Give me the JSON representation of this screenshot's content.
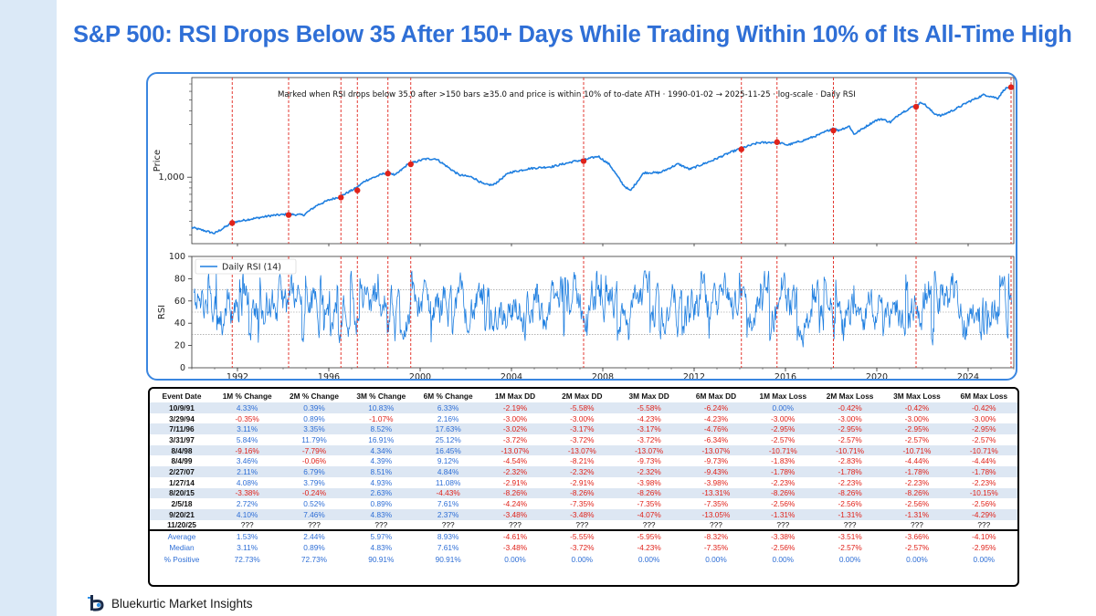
{
  "title": "S&P 500: RSI Drops Below 35 After 150+ Days While Trading Within 10% of Its All-Time High",
  "brand": "Bluekurtic Market Insights",
  "colors": {
    "accent": "#2f6fd6",
    "line": "#1f7fe0",
    "marker": "#e0231b",
    "frame": "#3a86e0"
  },
  "chart_data": [
    {
      "type": "line",
      "annotation": "Marked when RSI drops below 35.0 after >150 bars ≥35.0 and price is within 10% of to-date ATH · 1990-01-02 → 2025-11-25 · log-scale · Daily RSI",
      "ylabel": "Price",
      "yscale": "log",
      "ytick_labels": [
        "1,000"
      ],
      "x": [
        1990.0,
        1990.5,
        1991.0,
        1991.8,
        1992.5,
        1993.5,
        1994.2,
        1994.9,
        1995.5,
        1996.0,
        1996.5,
        1997.2,
        1997.6,
        1998.0,
        1998.6,
        1998.9,
        1999.5,
        1999.7,
        2000.2,
        2000.7,
        2001.3,
        2001.7,
        2002.3,
        2002.8,
        2003.2,
        2003.9,
        2004.8,
        2005.8,
        2006.8,
        2007.2,
        2007.8,
        2008.3,
        2008.9,
        2009.2,
        2009.8,
        2010.5,
        2011.3,
        2011.8,
        2012.8,
        2013.5,
        2014.1,
        2014.8,
        2015.6,
        2016.1,
        2016.8,
        2017.5,
        2018.1,
        2018.3,
        2018.8,
        2019.0,
        2019.9,
        2020.2,
        2020.6,
        2021.0,
        2021.7,
        2022.0,
        2022.5,
        2022.8,
        2023.4,
        2024.0,
        2024.7,
        2025.3,
        2025.6,
        2025.9
      ],
      "y": [
        350,
        330,
        310,
        390,
        415,
        450,
        462,
        455,
        560,
        620,
        670,
        800,
        930,
        1000,
        1120,
        1040,
        1330,
        1360,
        1460,
        1470,
        1200,
        1050,
        1000,
        860,
        850,
        1100,
        1200,
        1250,
        1400,
        1440,
        1550,
        1300,
        850,
        750,
        1100,
        1100,
        1320,
        1180,
        1420,
        1650,
        1840,
        2050,
        2080,
        1960,
        2160,
        2440,
        2800,
        2650,
        2900,
        2450,
        3230,
        3380,
        3150,
        3750,
        4500,
        4760,
        3800,
        3600,
        4100,
        4800,
        5600,
        5200,
        6300,
        6700
      ],
      "markers": [
        {
          "date": "10/9/91",
          "x": 1991.77,
          "y": 385
        },
        {
          "date": "3/29/94",
          "x": 1994.24,
          "y": 455
        },
        {
          "date": "7/11/96",
          "x": 1996.53,
          "y": 655
        },
        {
          "date": "3/31/97",
          "x": 1997.25,
          "y": 760
        },
        {
          "date": "8/4/98",
          "x": 1998.59,
          "y": 1080
        },
        {
          "date": "8/4/99",
          "x": 1999.59,
          "y": 1310
        },
        {
          "date": "2/27/07",
          "x": 2007.16,
          "y": 1400
        },
        {
          "date": "1/27/14",
          "x": 2014.07,
          "y": 1790
        },
        {
          "date": "8/20/15",
          "x": 2015.63,
          "y": 2080
        },
        {
          "date": "2/5/18",
          "x": 2018.1,
          "y": 2650
        },
        {
          "date": "9/20/21",
          "x": 2021.72,
          "y": 4350
        },
        {
          "date": "11/20/25",
          "x": 2025.88,
          "y": 6540
        }
      ],
      "xlim": [
        1990,
        2026
      ]
    },
    {
      "type": "line",
      "ylabel": "RSI",
      "ylim": [
        0,
        100
      ],
      "yticks": [
        0,
        20,
        40,
        60,
        80,
        100
      ],
      "hlines": [
        30,
        50,
        70
      ],
      "xticks": [
        1992,
        1996,
        2000,
        2004,
        2008,
        2012,
        2016,
        2020,
        2024
      ],
      "legend": "Daily RSI (14)",
      "legend_position": "top-left",
      "series": [
        {
          "name": "Daily RSI (14)",
          "value_range": [
            15,
            87
          ],
          "mean": 55
        }
      ]
    }
  ],
  "table": {
    "headers": [
      "Event Date",
      "1M % Change",
      "2M % Change",
      "3M % Change",
      "6M % Change",
      "1M Max DD",
      "2M Max DD",
      "3M Max DD",
      "6M Max DD",
      "1M Max Loss",
      "2M Max Loss",
      "3M Max Loss",
      "6M Max Loss"
    ],
    "rows": [
      [
        "10/9/91",
        "4.33%",
        "0.39%",
        "10.83%",
        "6.33%",
        "-2.19%",
        "-5.58%",
        "-5.58%",
        "-6.24%",
        "0.00%",
        "-0.42%",
        "-0.42%",
        "-0.42%"
      ],
      [
        "3/29/94",
        "-0.35%",
        "0.89%",
        "-1.07%",
        "2.16%",
        "-3.00%",
        "-3.00%",
        "-4.23%",
        "-4.23%",
        "-3.00%",
        "-3.00%",
        "-3.00%",
        "-3.00%"
      ],
      [
        "7/11/96",
        "3.11%",
        "3.35%",
        "8.52%",
        "17.63%",
        "-3.02%",
        "-3.17%",
        "-3.17%",
        "-4.76%",
        "-2.95%",
        "-2.95%",
        "-2.95%",
        "-2.95%"
      ],
      [
        "3/31/97",
        "5.84%",
        "11.79%",
        "16.91%",
        "25.12%",
        "-3.72%",
        "-3.72%",
        "-3.72%",
        "-6.34%",
        "-2.57%",
        "-2.57%",
        "-2.57%",
        "-2.57%"
      ],
      [
        "8/4/98",
        "-9.16%",
        "-7.79%",
        "4.34%",
        "16.45%",
        "-13.07%",
        "-13.07%",
        "-13.07%",
        "-13.07%",
        "-10.71%",
        "-10.71%",
        "-10.71%",
        "-10.71%"
      ],
      [
        "8/4/99",
        "3.46%",
        "-0.06%",
        "4.39%",
        "9.12%",
        "-4.54%",
        "-8.21%",
        "-9.73%",
        "-9.73%",
        "-1.83%",
        "-2.83%",
        "-4.44%",
        "-4.44%"
      ],
      [
        "2/27/07",
        "2.11%",
        "6.79%",
        "8.51%",
        "4.84%",
        "-2.32%",
        "-2.32%",
        "-2.32%",
        "-9.43%",
        "-1.78%",
        "-1.78%",
        "-1.78%",
        "-1.78%"
      ],
      [
        "1/27/14",
        "4.08%",
        "3.79%",
        "4.93%",
        "11.08%",
        "-2.91%",
        "-2.91%",
        "-3.98%",
        "-3.98%",
        "-2.23%",
        "-2.23%",
        "-2.23%",
        "-2.23%"
      ],
      [
        "8/20/15",
        "-3.38%",
        "-0.24%",
        "2.63%",
        "-4.43%",
        "-8.26%",
        "-8.26%",
        "-8.26%",
        "-13.31%",
        "-8.26%",
        "-8.26%",
        "-8.26%",
        "-10.15%"
      ],
      [
        "2/5/18",
        "2.72%",
        "0.52%",
        "0.89%",
        "7.61%",
        "-4.24%",
        "-7.35%",
        "-7.35%",
        "-7.35%",
        "-2.56%",
        "-2.56%",
        "-2.56%",
        "-2.56%"
      ],
      [
        "9/20/21",
        "4.10%",
        "7.46%",
        "4.83%",
        "2.37%",
        "-3.48%",
        "-3.48%",
        "-4.07%",
        "-13.05%",
        "-1.31%",
        "-1.31%",
        "-1.31%",
        "-4.29%"
      ],
      [
        "11/20/25",
        "???",
        "???",
        "???",
        "???",
        "???",
        "???",
        "???",
        "???",
        "???",
        "???",
        "???",
        "???"
      ]
    ],
    "stats": [
      [
        "Average",
        "1.53%",
        "2.44%",
        "5.97%",
        "8.93%",
        "-4.61%",
        "-5.55%",
        "-5.95%",
        "-8.32%",
        "-3.38%",
        "-3.51%",
        "-3.66%",
        "-4.10%"
      ],
      [
        "Median",
        "3.11%",
        "0.89%",
        "4.83%",
        "7.61%",
        "-3.48%",
        "-3.72%",
        "-4.23%",
        "-7.35%",
        "-2.56%",
        "-2.57%",
        "-2.57%",
        "-2.95%"
      ],
      [
        "% Positive",
        "72.73%",
        "72.73%",
        "90.91%",
        "90.91%",
        "0.00%",
        "0.00%",
        "0.00%",
        "0.00%",
        "0.00%",
        "0.00%",
        "0.00%",
        "0.00%"
      ]
    ]
  }
}
